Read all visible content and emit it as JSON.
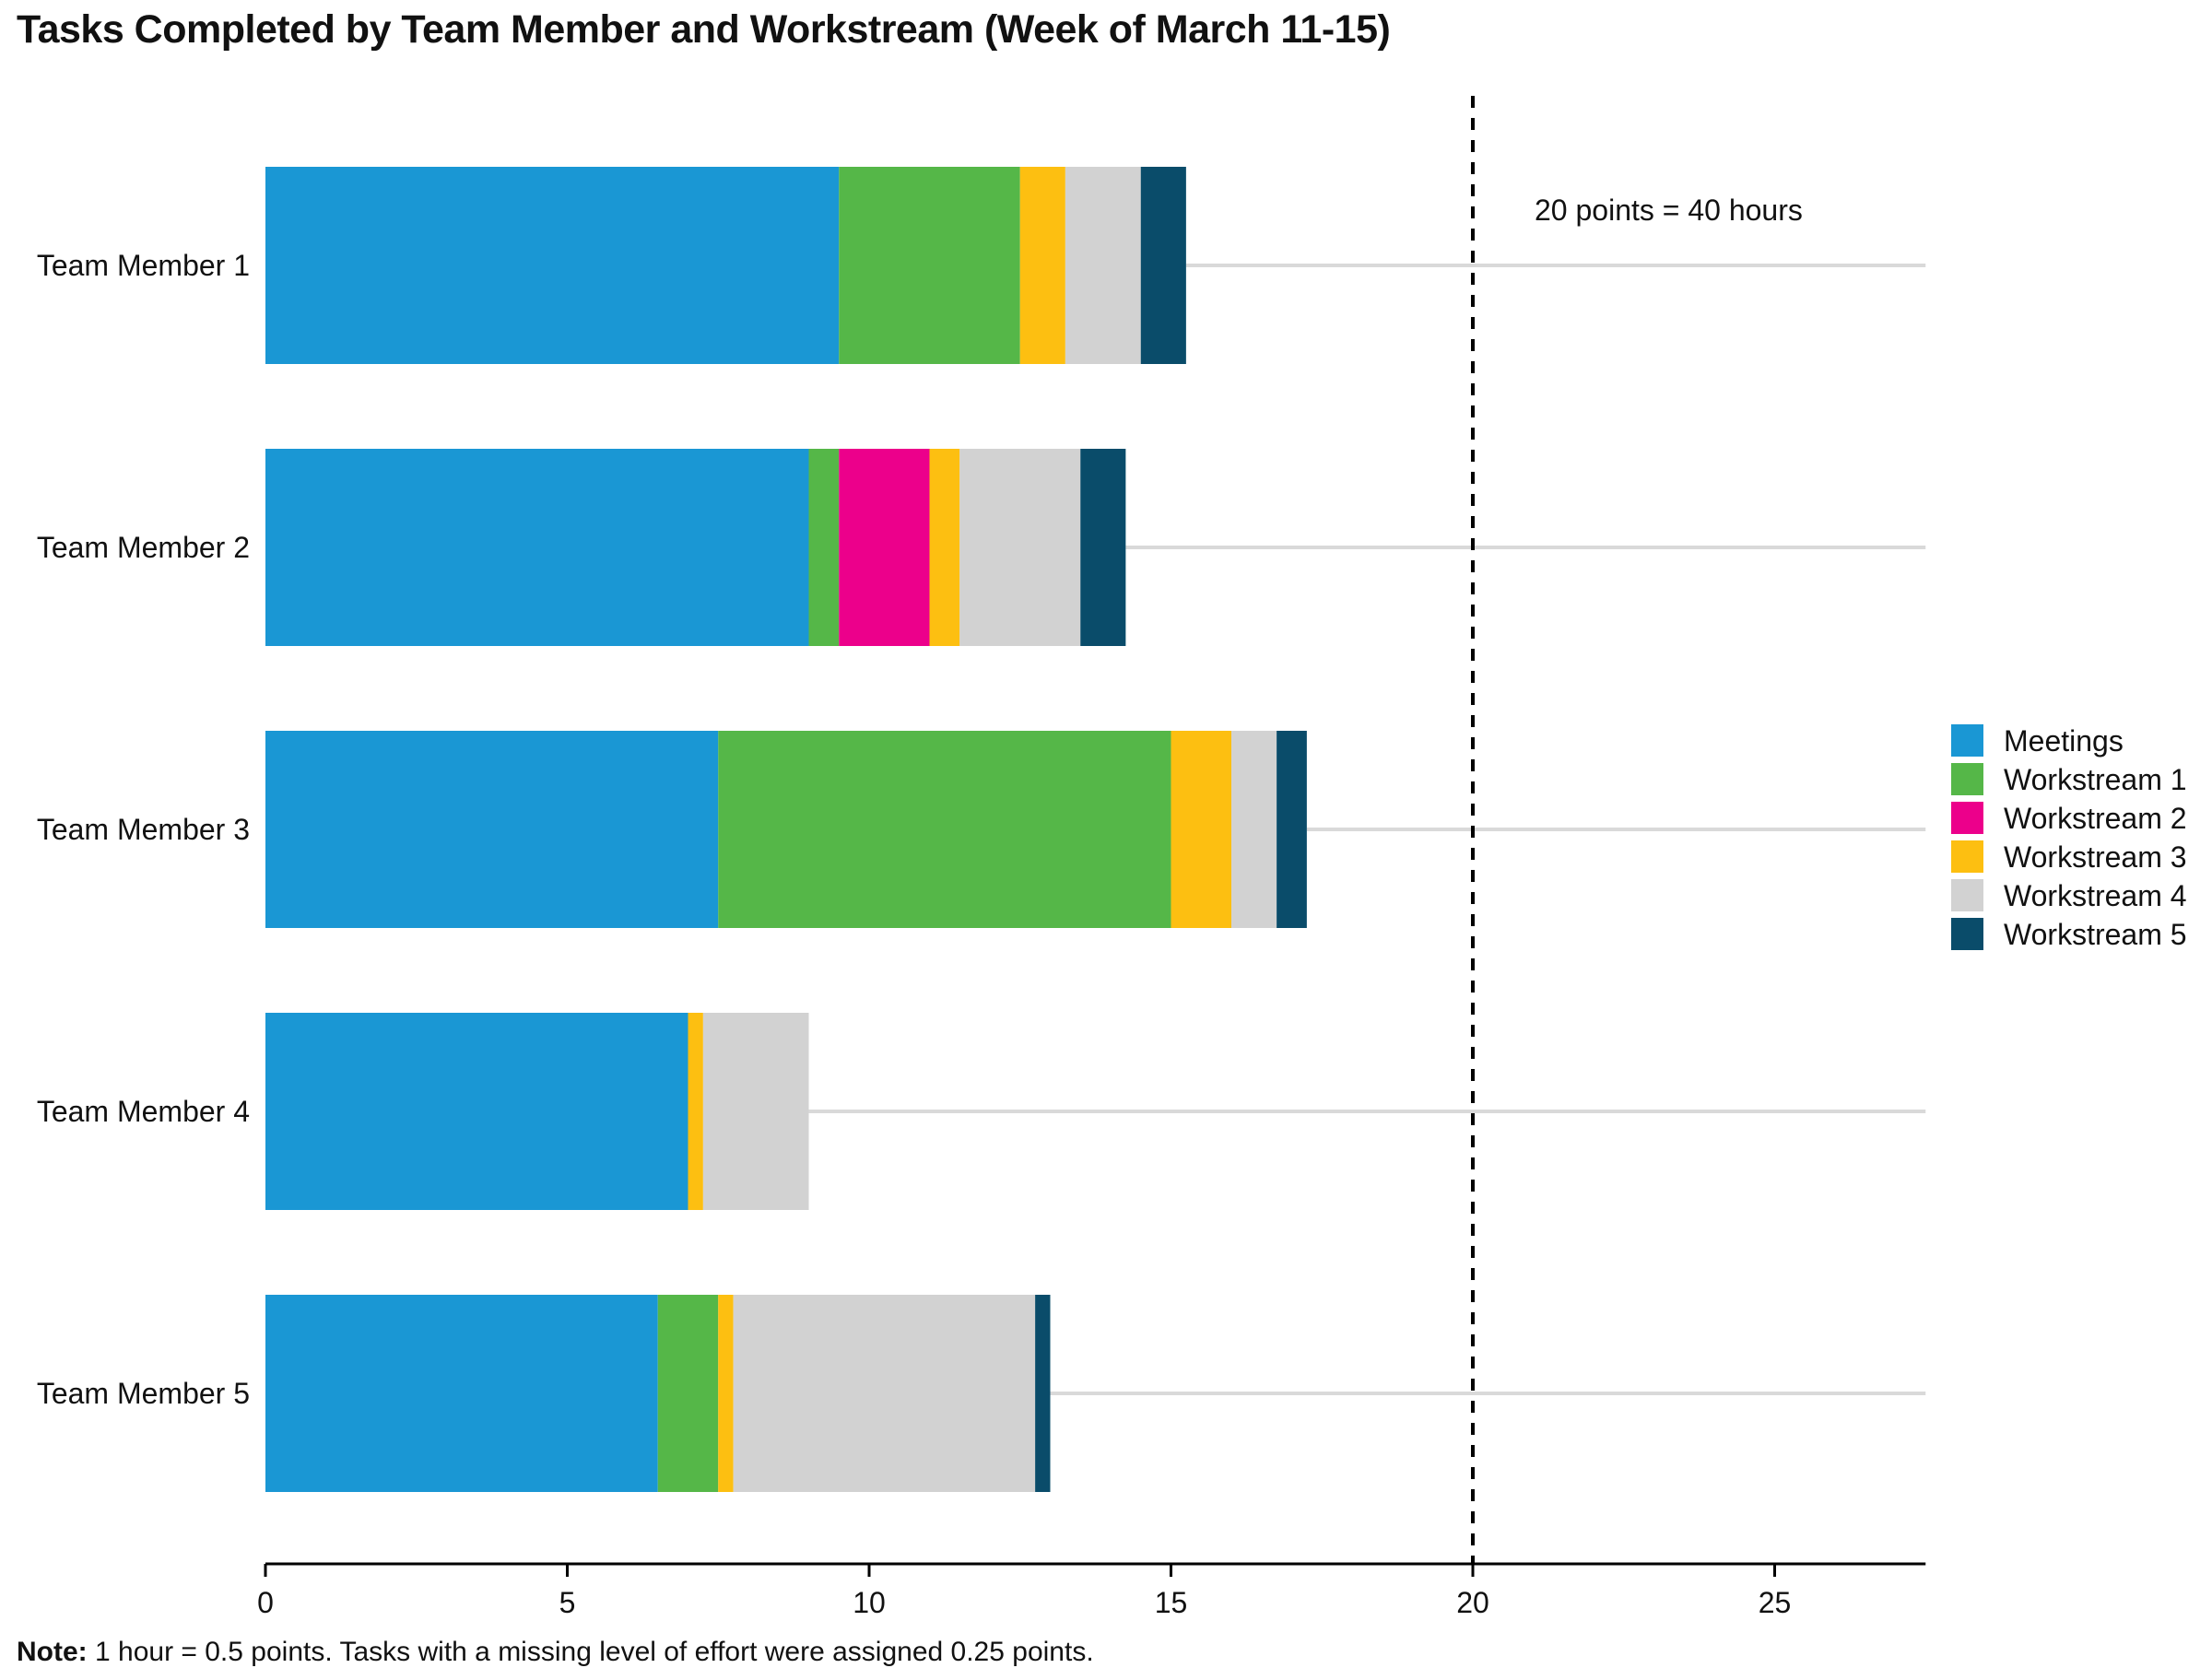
{
  "chart_data": {
    "type": "bar",
    "orientation": "horizontal",
    "stacked": true,
    "title": "Tasks Completed by Team Member and Workstream (Week of March 11-15)",
    "xlabel": "",
    "ylabel": "",
    "xlim": [
      0,
      27.5
    ],
    "xticks": [
      0,
      5,
      10,
      15,
      20,
      25
    ],
    "categories": [
      "Team Member 1",
      "Team Member 2",
      "Team Member 3",
      "Team Member 4",
      "Team Member 5"
    ],
    "series": [
      {
        "name": "Meetings",
        "color": "#1a97d4",
        "values": [
          9.5,
          9.0,
          7.5,
          7.0,
          6.5
        ]
      },
      {
        "name": "Workstream 1",
        "color": "#55b748",
        "values": [
          3.0,
          0.5,
          7.5,
          0.0,
          1.0
        ]
      },
      {
        "name": "Workstream 2",
        "color": "#ec008b",
        "values": [
          0.0,
          1.5,
          0.0,
          0.0,
          0.0
        ]
      },
      {
        "name": "Workstream 3",
        "color": "#fdbf11",
        "values": [
          0.75,
          0.5,
          1.0,
          0.25,
          0.25
        ]
      },
      {
        "name": "Workstream 4",
        "color": "#d2d2d2",
        "values": [
          1.25,
          2.0,
          0.75,
          1.75,
          5.0
        ]
      },
      {
        "name": "Workstream 5",
        "color": "#0a4c6a",
        "values": [
          0.75,
          0.75,
          0.5,
          0.0,
          0.25
        ]
      }
    ],
    "reference_line": {
      "x": 20,
      "style": "dashed",
      "label": "20 points = 40 hours"
    },
    "legend_position": "right",
    "grid": false,
    "note_label": "Note:",
    "note_text": " 1 hour = 0.5 points. Tasks with a missing level of effort were assigned 0.25 points."
  }
}
